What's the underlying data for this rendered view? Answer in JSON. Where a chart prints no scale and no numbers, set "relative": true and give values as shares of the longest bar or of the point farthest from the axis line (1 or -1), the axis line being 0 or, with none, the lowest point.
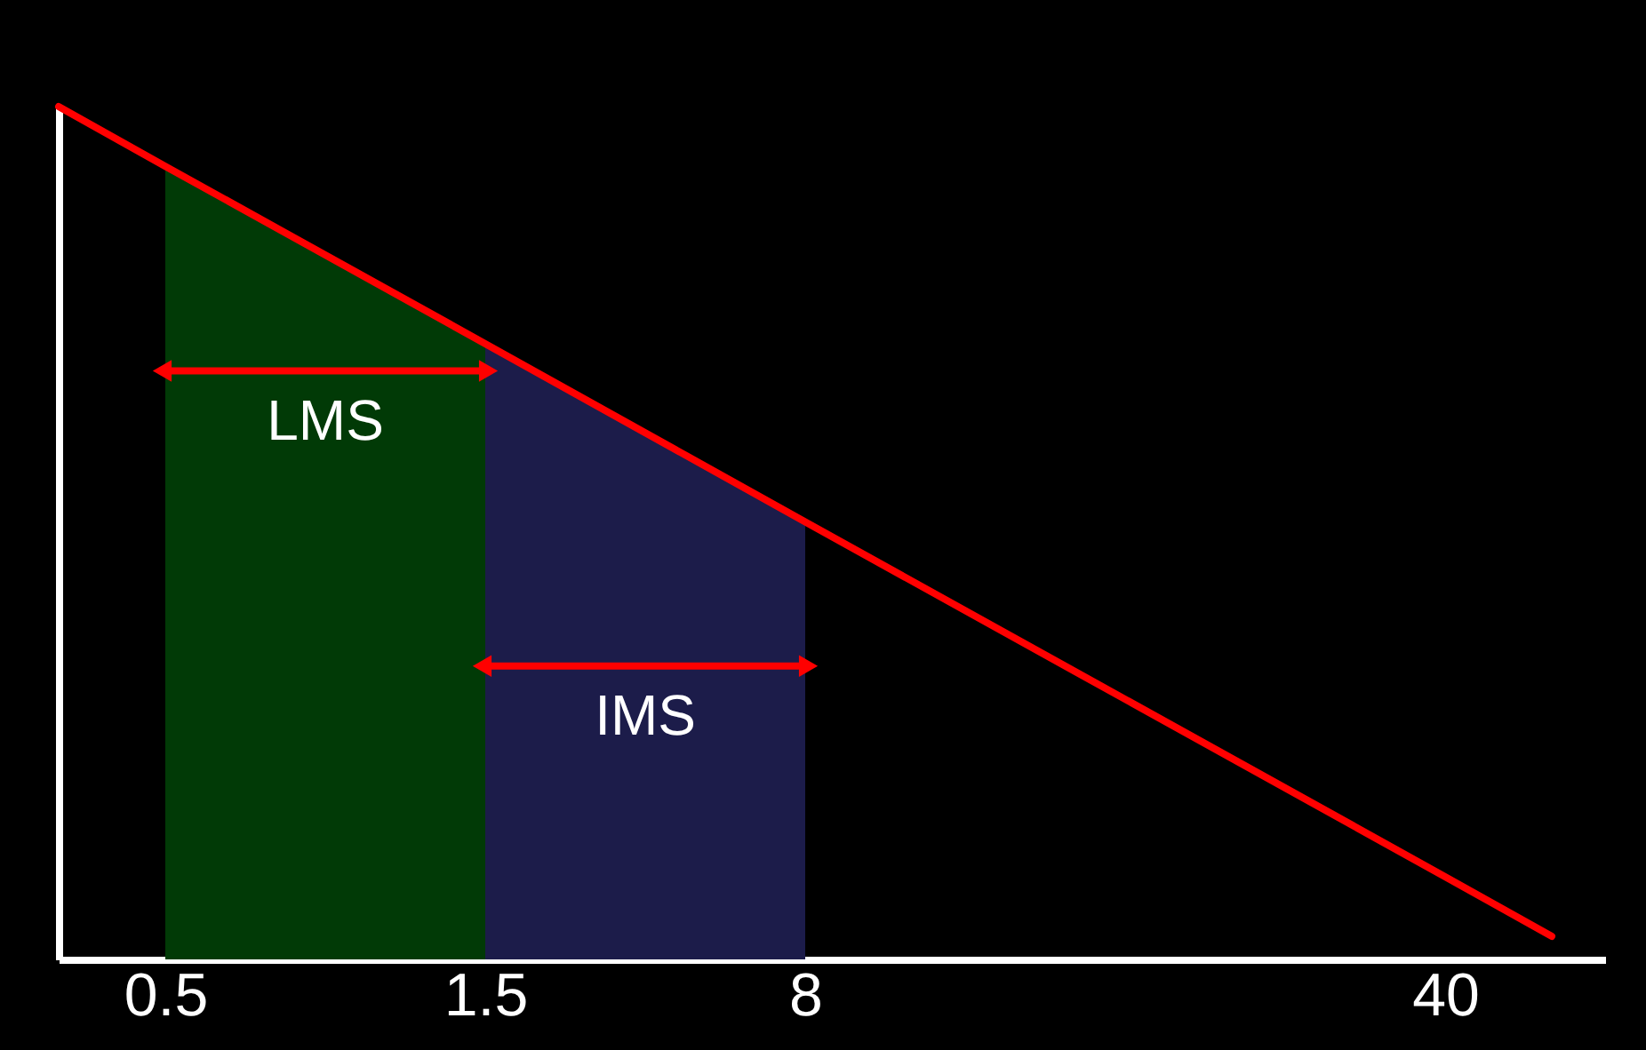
{
  "chart_data": {
    "type": "area",
    "relative": true,
    "categories": [
      null,
      null,
      "0.5",
      null,
      null,
      null,
      null,
      null,
      "1.5",
      null,
      null,
      null,
      null,
      null,
      "8",
      null,
      null,
      null,
      null,
      null,
      null,
      null,
      null,
      null,
      null,
      null,
      "40",
      null,
      null,
      null
    ],
    "series": [
      {
        "color": "#013a06",
        "values": [
          null,
          null,
          0.93,
          null,
          null,
          null,
          null,
          null,
          0.722,
          null,
          null,
          null,
          null,
          null,
          null,
          null,
          null,
          null,
          null,
          null,
          null,
          null,
          null,
          null,
          null,
          null,
          null,
          null,
          null,
          null
        ]
      },
      {
        "color": "#1c1c4a",
        "values": [
          null,
          null,
          null,
          null,
          null,
          null,
          null,
          null,
          0.722,
          null,
          null,
          null,
          null,
          null,
          0.513,
          null,
          null,
          null,
          null,
          null,
          null,
          null,
          null,
          null,
          null,
          null,
          null,
          null,
          null,
          null
        ]
      },
      {
        "type": "line",
        "color": "#ff0000",
        "values": [
          1,
          null,
          0.93,
          null,
          null,
          null,
          null,
          null,
          0.722,
          null,
          null,
          null,
          null,
          null,
          0.513,
          null,
          null,
          null,
          null,
          null,
          null,
          null,
          null,
          null,
          null,
          null,
          0.097,
          null,
          0.027,
          null
        ]
      }
    ],
    "annotations": [
      "LMS",
      "IMS"
    ]
  }
}
